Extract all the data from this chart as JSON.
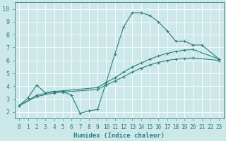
{
  "xlabel": "Humidex (Indice chaleur)",
  "bg_color": "#cce8e8",
  "grid_color": "#ffffff",
  "line_color": "#2e7d7d",
  "xlim": [
    -0.5,
    23.5
  ],
  "ylim": [
    1.5,
    10.5
  ],
  "xticks": [
    0,
    1,
    2,
    3,
    4,
    5,
    6,
    7,
    8,
    9,
    10,
    11,
    12,
    13,
    14,
    15,
    16,
    17,
    18,
    19,
    20,
    21,
    22,
    23
  ],
  "yticks": [
    2,
    3,
    4,
    5,
    6,
    7,
    8,
    9,
    10
  ],
  "line1_x": [
    0,
    1,
    2,
    3,
    4,
    5,
    6,
    7,
    8,
    9,
    10,
    11,
    12,
    13,
    14,
    15,
    16,
    17,
    18,
    19,
    20,
    21,
    23
  ],
  "line1_y": [
    2.5,
    3.1,
    4.1,
    3.5,
    3.6,
    3.6,
    3.3,
    1.9,
    2.1,
    2.2,
    4.3,
    6.5,
    8.6,
    9.7,
    9.7,
    9.5,
    9.0,
    8.3,
    7.5,
    7.5,
    7.2,
    7.2,
    6.1
  ],
  "line2_x": [
    0,
    2,
    4,
    5,
    9,
    10,
    11,
    12,
    13,
    14,
    15,
    16,
    17,
    18,
    19,
    20,
    23
  ],
  "line2_y": [
    2.5,
    3.2,
    3.5,
    3.55,
    3.75,
    4.1,
    4.4,
    4.75,
    5.1,
    5.4,
    5.65,
    5.85,
    6.0,
    6.1,
    6.15,
    6.2,
    6.0
  ],
  "line3_x": [
    0,
    2,
    4,
    5,
    9,
    10,
    11,
    12,
    13,
    14,
    15,
    16,
    17,
    18,
    19,
    20,
    23
  ],
  "line3_y": [
    2.5,
    3.3,
    3.6,
    3.65,
    3.9,
    4.3,
    4.65,
    5.1,
    5.5,
    5.8,
    6.1,
    6.35,
    6.55,
    6.7,
    6.8,
    6.85,
    6.1
  ]
}
